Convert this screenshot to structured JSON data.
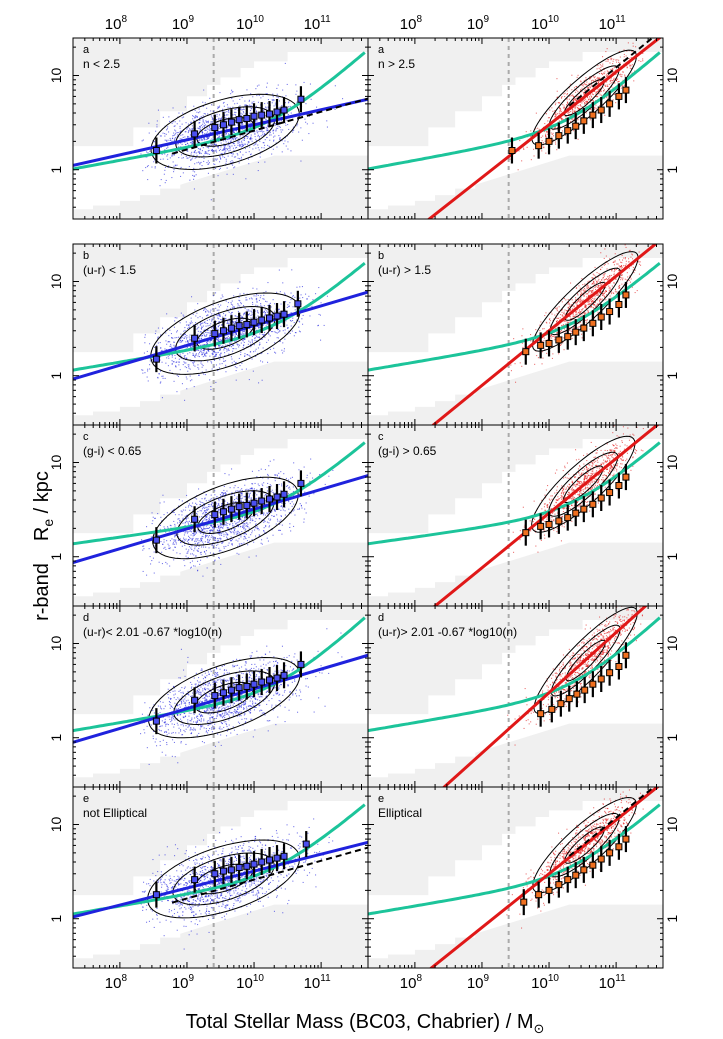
{
  "chart_data": {
    "type": "scatter",
    "figure": {
      "xlabel_main": "Total Stellar Mass (BC03, Chabrier) / M",
      "xlabel_sub": "⊙",
      "ylabel_band": "r-band",
      "ylabel_main": "R",
      "ylabel_sub": "e",
      "ylabel_unit": " / kpc",
      "x_scale": "log",
      "y_scale": "log",
      "xlim": [
        20000000,
        500000000000
      ],
      "ylim": [
        0.3,
        25
      ],
      "x_tick_labels": [
        "10",
        "10",
        "10",
        "10"
      ],
      "x_tick_exponents": [
        "8",
        "9",
        "10",
        "11"
      ],
      "x_tick_values": [
        100000000,
        1000000000,
        10000000000,
        100000000000
      ],
      "y_tick_labels": [
        "1",
        "10"
      ],
      "y_tick_values": [
        1,
        10
      ],
      "mass_limit": 2500000000,
      "colors": {
        "blue": "#1f22dd",
        "red": "#e01818",
        "teal": "#1cc49a",
        "orange": "#f07020",
        "blue_box": "#4b4ff0",
        "grey": "#f0f0f0"
      }
    },
    "panels": [
      {
        "row": 0,
        "col": 0,
        "letter": "a",
        "label": "n < 2.5",
        "pop": "blue",
        "dashed": true,
        "teal": {
          "amp": 2.5,
          "alpha": 0.13,
          "beta": 0.62,
          "m0": 20000000000
        },
        "fit": {
          "amp": 3.0,
          "slope": 0.16
        },
        "dash": {
          "amp": 2.6,
          "slope": 0.2,
          "xmin": 600000000
        },
        "binned": {
          "x": [
            350000000,
            1300000000,
            2600000000,
            3500000000,
            4600000000,
            6000000000,
            7800000000,
            10000000000,
            13000000000,
            17000000000,
            22000000000,
            28000000000,
            50000000000
          ],
          "y": [
            1.6,
            2.4,
            2.8,
            3.0,
            3.2,
            3.4,
            3.5,
            3.7,
            3.8,
            3.9,
            4.1,
            4.3,
            5.6
          ]
        }
      },
      {
        "row": 0,
        "col": 1,
        "letter": "a",
        "label": "n > 2.5",
        "pop": "red",
        "dashed": true,
        "teal": {
          "amp": 2.5,
          "alpha": 0.13,
          "beta": 0.62,
          "m0": 20000000000
        },
        "fit": {
          "amp": 3.0,
          "slope": 0.56
        },
        "dash": {
          "amp": 3.2,
          "slope": 0.58,
          "xmin": 20000000000
        },
        "binned": {
          "x": [
            2800000000,
            7000000000,
            10000000000,
            14000000000,
            19000000000,
            25000000000,
            33000000000,
            45000000000,
            60000000000,
            80000000000,
            110000000000,
            140000000000
          ],
          "y": [
            1.6,
            1.8,
            2.0,
            2.3,
            2.6,
            2.9,
            3.3,
            3.8,
            4.3,
            5.0,
            6.0,
            7.0
          ]
        }
      },
      {
        "row": 1,
        "col": 0,
        "letter": "b",
        "label": "(u-r) < 1.5",
        "pop": "blue",
        "dashed": false,
        "teal": {
          "amp": 2.7,
          "alpha": 0.12,
          "beta": 0.6,
          "m0": 25000000000
        },
        "fit": {
          "amp": 3.4,
          "slope": 0.21
        },
        "binned": {
          "x": [
            350000000,
            1300000000,
            2600000000,
            3500000000,
            4600000000,
            6000000000,
            7800000000,
            10000000000,
            13000000000,
            17000000000,
            22000000000,
            28000000000,
            45000000000
          ],
          "y": [
            1.5,
            2.5,
            2.8,
            3.0,
            3.2,
            3.4,
            3.5,
            3.7,
            3.9,
            4.1,
            4.3,
            4.5,
            5.8
          ]
        }
      },
      {
        "row": 1,
        "col": 1,
        "letter": "b",
        "label": "(u-r) > 1.5",
        "pop": "red",
        "dashed": false,
        "teal": {
          "amp": 2.7,
          "alpha": 0.12,
          "beta": 0.6,
          "m0": 25000000000
        },
        "fit": {
          "amp": 3.0,
          "slope": 0.58
        },
        "binned": {
          "x": [
            4500000000,
            7500000000,
            10000000000,
            14000000000,
            19000000000,
            25000000000,
            33000000000,
            45000000000,
            60000000000,
            80000000000,
            110000000000,
            140000000000
          ],
          "y": [
            1.8,
            2.1,
            2.2,
            2.4,
            2.6,
            2.9,
            3.2,
            3.6,
            4.2,
            4.8,
            5.7,
            7.2
          ]
        }
      },
      {
        "row": 2,
        "col": 0,
        "letter": "c",
        "label": "(g-i) < 0.65",
        "pop": "blue",
        "dashed": false,
        "teal": {
          "amp": 2.8,
          "alpha": 0.1,
          "beta": 0.6,
          "m0": 25000000000
        },
        "fit": {
          "amp": 3.2,
          "slope": 0.21
        },
        "binned": {
          "x": [
            350000000,
            1300000000,
            2600000000,
            3500000000,
            4600000000,
            6000000000,
            7800000000,
            10000000000,
            13000000000,
            17000000000,
            22000000000,
            28000000000,
            50000000000
          ],
          "y": [
            1.5,
            2.5,
            2.8,
            3.0,
            3.2,
            3.4,
            3.5,
            3.7,
            3.9,
            4.1,
            4.3,
            4.6,
            6.0
          ]
        }
      },
      {
        "row": 2,
        "col": 1,
        "letter": "c",
        "label": "(g-i) > 0.65",
        "pop": "red",
        "dashed": false,
        "teal": {
          "amp": 2.8,
          "alpha": 0.1,
          "beta": 0.6,
          "m0": 25000000000
        },
        "fit": {
          "amp": 2.9,
          "slope": 0.58
        },
        "binned": {
          "x": [
            4500000000,
            7500000000,
            10000000000,
            14000000000,
            19000000000,
            25000000000,
            33000000000,
            45000000000,
            60000000000,
            80000000000,
            110000000000,
            140000000000
          ],
          "y": [
            1.8,
            2.1,
            2.2,
            2.4,
            2.6,
            2.9,
            3.2,
            3.6,
            4.2,
            4.8,
            5.7,
            7.0
          ]
        }
      },
      {
        "row": 3,
        "col": 0,
        "letter": "d",
        "label": "(u-r)< 2.01 -0.67 *log10(n)",
        "pop": "blue",
        "dashed": false,
        "teal": {
          "amp": 2.8,
          "alpha": 0.12,
          "beta": 0.65,
          "m0": 25000000000
        },
        "fit": {
          "amp": 3.3,
          "slope": 0.21
        },
        "binned": {
          "x": [
            350000000,
            1300000000,
            2600000000,
            3500000000,
            4600000000,
            6000000000,
            7800000000,
            10000000000,
            13000000000,
            17000000000,
            22000000000,
            28000000000,
            50000000000
          ],
          "y": [
            1.5,
            2.5,
            2.8,
            3.0,
            3.2,
            3.4,
            3.5,
            3.7,
            3.9,
            4.1,
            4.3,
            4.6,
            6.0
          ]
        }
      },
      {
        "row": 3,
        "col": 1,
        "letter": "d",
        "label": "(u-r)> 2.01 -0.67 *log10(n)",
        "pop": "red",
        "dashed": false,
        "teal": {
          "amp": 2.8,
          "alpha": 0.12,
          "beta": 0.65,
          "m0": 25000000000
        },
        "fit": {
          "amp": 3.0,
          "slope": 0.64
        },
        "binned": {
          "x": [
            7500000000,
            11000000000,
            15000000000,
            20000000000,
            26000000000,
            34000000000,
            45000000000,
            60000000000,
            80000000000,
            110000000000,
            140000000000
          ],
          "y": [
            1.8,
            2.0,
            2.3,
            2.6,
            2.9,
            3.2,
            3.7,
            4.2,
            4.9,
            5.7,
            7.5
          ]
        }
      },
      {
        "row": 4,
        "col": 0,
        "letter": "e",
        "label": "not Elliptical",
        "pop": "blue",
        "dashed": true,
        "teal": {
          "amp": 2.6,
          "alpha": 0.12,
          "beta": 0.6,
          "m0": 22000000000
        },
        "fit": {
          "amp": 3.2,
          "slope": 0.18
        },
        "dash": {
          "amp": 2.6,
          "slope": 0.2,
          "xmin": 600000000
        },
        "binned": {
          "x": [
            350000000,
            1300000000,
            2600000000,
            3500000000,
            4600000000,
            6000000000,
            7800000000,
            10000000000,
            13000000000,
            17000000000,
            22000000000,
            28000000000,
            60000000000
          ],
          "y": [
            1.8,
            2.6,
            3.0,
            3.2,
            3.3,
            3.5,
            3.6,
            3.8,
            4.0,
            4.2,
            4.4,
            4.6,
            6.2
          ]
        }
      },
      {
        "row": 4,
        "col": 1,
        "letter": "e",
        "label": "Elliptical",
        "pop": "red",
        "dashed": true,
        "teal": {
          "amp": 2.6,
          "alpha": 0.12,
          "beta": 0.6,
          "m0": 22000000000
        },
        "fit": {
          "amp": 3.0,
          "slope": 0.57
        },
        "dash": {
          "amp": 3.1,
          "slope": 0.58,
          "xmin": 20000000000
        },
        "binned": {
          "x": [
            4200000000,
            7000000000,
            10000000000,
            14000000000,
            19000000000,
            25000000000,
            33000000000,
            45000000000,
            60000000000,
            80000000000,
            110000000000,
            140000000000
          ],
          "y": [
            1.5,
            1.8,
            2.0,
            2.3,
            2.6,
            2.9,
            3.3,
            3.7,
            4.3,
            5.0,
            5.8,
            7.0
          ]
        }
      }
    ]
  }
}
